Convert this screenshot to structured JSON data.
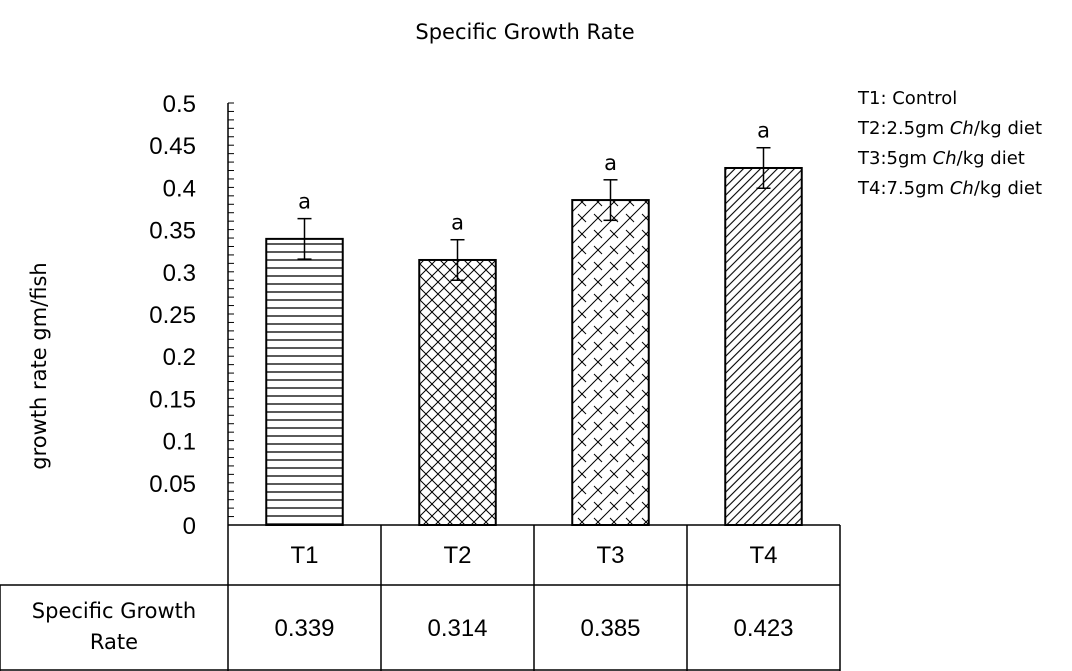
{
  "chart_data": {
    "type": "bar",
    "title": "Specific Growth Rate",
    "ylabel": "growth rate gm/fish",
    "xlabel": "",
    "ylim": [
      0,
      0.5
    ],
    "y_ticks": [
      "0",
      "0.05",
      "0.1",
      "0.15",
      "0.2",
      "0.25",
      "0.3",
      "0.35",
      "0.4",
      "0.45",
      "0.5"
    ],
    "y_tick_values": [
      0,
      0.05,
      0.1,
      0.15,
      0.2,
      0.25,
      0.3,
      0.35,
      0.4,
      0.45,
      0.5
    ],
    "categories": [
      "T1",
      "T2",
      "T3",
      "T4"
    ],
    "series": [
      {
        "name": "Specific Growth Rate",
        "values": [
          0.339,
          0.314,
          0.385,
          0.423
        ],
        "error": [
          0.024,
          0.024,
          0.024,
          0.024
        ],
        "significance_labels": [
          "a",
          "a",
          "a",
          "a"
        ],
        "patterns": [
          "horizontal-lines",
          "crosshatch",
          "brick",
          "diagonal-lines"
        ]
      }
    ],
    "data_table": {
      "row_label": [
        "Specific Growth",
        "Rate"
      ],
      "values": [
        "0.339",
        "0.314",
        "0.385",
        "0.423"
      ]
    },
    "legend_note": [
      {
        "prefix": "T1: Control",
        "italic": "",
        "suffix": ""
      },
      {
        "prefix": "T2:2.5gm ",
        "italic": "Ch",
        "suffix": "/kg diet"
      },
      {
        "prefix": "T3:5gm ",
        "italic": "Ch",
        "suffix": "/kg diet"
      },
      {
        "prefix": "T4:7.5gm ",
        "italic": "Ch",
        "suffix": "/kg diet"
      }
    ],
    "grid": false,
    "legend_position": "top-right"
  }
}
